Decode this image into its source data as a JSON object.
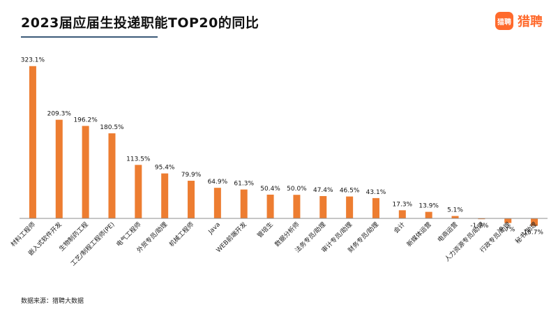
{
  "title": "2023届应届生投递职能TOP20的同比",
  "source": "数据来源：猎聘大数据",
  "logo": {
    "mark": "猎聘",
    "text": "猎聘"
  },
  "colors": {
    "bar": "#ed7d31",
    "axis": "#8c8c8c",
    "title_line": "#3b5a78",
    "brand": "#ff6a2c"
  },
  "chart_data": {
    "type": "bar",
    "categories": [
      "材料工程师",
      "嵌入式软件开发",
      "生物制药工程",
      "工艺/制程工程师(PE)",
      "电气工程师",
      "外贸专员/助理",
      "机械工程师",
      "Java",
      "WEB前端开发",
      "管培生",
      "数据分析师",
      "法务专员/助理",
      "审计专员/助理",
      "财务专员/助理",
      "会计",
      "新媒体运营",
      "电商运营",
      "人力资源专员/助理",
      "行政专员/助理",
      "秘书/助理"
    ],
    "values": [
      323.1,
      209.3,
      196.2,
      180.5,
      113.5,
      95.4,
      79.9,
      64.9,
      61.3,
      50.4,
      50.0,
      47.4,
      46.5,
      43.1,
      17.3,
      13.9,
      5.1,
      -1.7,
      -9.7,
      -15.7
    ],
    "labels": [
      "323.1%",
      "209.3%",
      "196.2%",
      "180.5%",
      "113.5%",
      "95.4%",
      "79.9%",
      "64.9%",
      "61.3%",
      "50.4%",
      "50.0%",
      "47.4%",
      "46.5%",
      "43.1%",
      "17.3%",
      "13.9%",
      "5.1%",
      "-1.7%",
      "-9.7%",
      "-15.7%"
    ],
    "unit": "%",
    "grid": false,
    "legend": "none"
  }
}
